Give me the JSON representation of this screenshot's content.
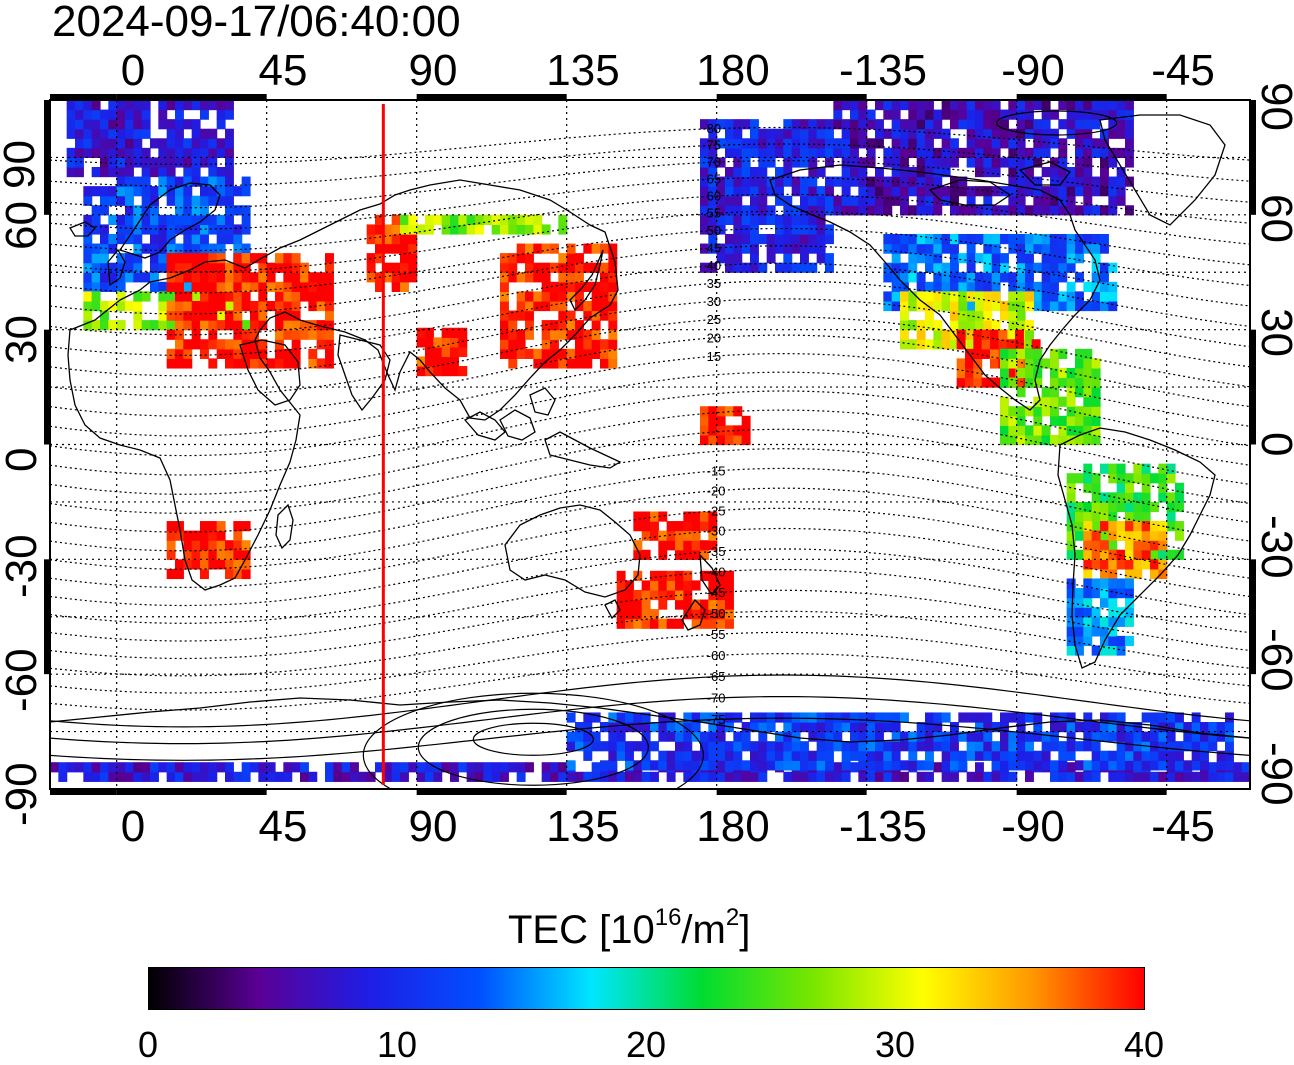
{
  "title": "2024-09-17/06:40:00",
  "axes": {
    "x_ticks": [
      "0",
      "45",
      "90",
      "135",
      "180",
      "-135",
      "-90",
      "-45"
    ],
    "y_ticks": [
      "90",
      "60",
      "30",
      "0",
      "-30",
      "-60",
      "-90"
    ],
    "lon_range": [
      -20,
      340
    ],
    "lat_range": [
      -90,
      90
    ],
    "grid": "dotted"
  },
  "terminator_longitude": 80,
  "terminator_color": "#ff0000",
  "contour_labels": [
    "80",
    "75",
    "70",
    "65",
    "60",
    "55",
    "50",
    "45",
    "40",
    "35",
    "30",
    "25",
    "20",
    "15",
    "-15",
    "-20",
    "-25",
    "-30",
    "-35",
    "-40",
    "-45",
    "-50",
    "-55",
    "-60",
    "-65",
    "-70",
    "-75"
  ],
  "colorbar": {
    "label_main": "TEC  [10",
    "label_sup1": "16",
    "label_mid": "/m",
    "label_sup2": "2",
    "label_end": "]",
    "ticks": [
      "0",
      "10",
      "20",
      "30",
      "40"
    ],
    "range": [
      0,
      40
    ],
    "colors": [
      "#000000",
      "#5a0096",
      "#1e1ee6",
      "#0050ff",
      "#00e6ff",
      "#00dc32",
      "#78e600",
      "#ffff00",
      "#ff9600",
      "#ff0000"
    ]
  },
  "chart_data": {
    "type": "heatmap",
    "title": "2024-09-17/06:40:00",
    "quantity": "TEC",
    "units": "10^16/m^2",
    "x_ticks": [
      0,
      45,
      90,
      135,
      180,
      -135,
      -90,
      -45
    ],
    "y_ticks": [
      90,
      60,
      30,
      0,
      -30,
      -60,
      -90
    ],
    "value_range": [
      0,
      40
    ],
    "regions": [
      {
        "lon": [
          -15,
          35
        ],
        "lat": [
          70,
          88
        ],
        "tec": 8
      },
      {
        "lon": [
          -10,
          40
        ],
        "lat": [
          40,
          70
        ],
        "tec": 12
      },
      {
        "lon": [
          -10,
          45
        ],
        "lat": [
          30,
          40
        ],
        "tec": 28
      },
      {
        "lon": [
          15,
          65
        ],
        "lat": [
          20,
          50
        ],
        "tec": 40
      },
      {
        "lon": [
          75,
          90
        ],
        "lat": [
          40,
          60
        ],
        "tec": 40
      },
      {
        "lon": [
          85,
          135
        ],
        "lat": [
          55,
          60
        ],
        "tec": 27
      },
      {
        "lon": [
          115,
          150
        ],
        "lat": [
          20,
          52
        ],
        "tec": 40
      },
      {
        "lon": [
          90,
          105
        ],
        "lat": [
          18,
          30
        ],
        "tec": 40
      },
      {
        "lon": [
          15,
          38
        ],
        "lat": [
          -35,
          -22
        ],
        "tec": 40
      },
      {
        "lon": [
          150,
          185
        ],
        "lat": [
          -48,
          -35
        ],
        "tec": 40
      },
      {
        "lon": [
          155,
          180
        ],
        "lat": [
          -30,
          -18
        ],
        "tec": 40
      },
      {
        "lon": [
          175,
          190
        ],
        "lat": [
          0,
          10
        ],
        "tec": 40
      },
      {
        "lon": [
          175,
          215
        ],
        "lat": [
          45,
          85
        ],
        "tec": 9
      },
      {
        "lon": [
          215,
          305
        ],
        "lat": [
          60,
          88
        ],
        "tec": 7
      },
      {
        "lon": [
          230,
          300
        ],
        "lat": [
          35,
          55
        ],
        "tec": 14
      },
      {
        "lon": [
          235,
          275
        ],
        "lat": [
          25,
          38
        ],
        "tec": 30
      },
      {
        "lon": [
          252,
          275
        ],
        "lat": [
          15,
          28
        ],
        "tec": 40
      },
      {
        "lon": [
          265,
          295
        ],
        "lat": [
          0,
          25
        ],
        "tec": 26
      },
      {
        "lon": [
          285,
          320
        ],
        "lat": [
          -30,
          -5
        ],
        "tec": 24
      },
      {
        "lon": [
          290,
          315
        ],
        "lat": [
          -35,
          -20
        ],
        "tec": 36
      },
      {
        "lon": [
          285,
          305
        ],
        "lat": [
          -55,
          -35
        ],
        "tec": 15
      },
      {
        "lon": [
          -20,
          340
        ],
        "lat": [
          -88,
          -83
        ],
        "tec": 8
      },
      {
        "lon": [
          135,
          335
        ],
        "lat": [
          -85,
          -70
        ],
        "tec": 11
      }
    ]
  }
}
